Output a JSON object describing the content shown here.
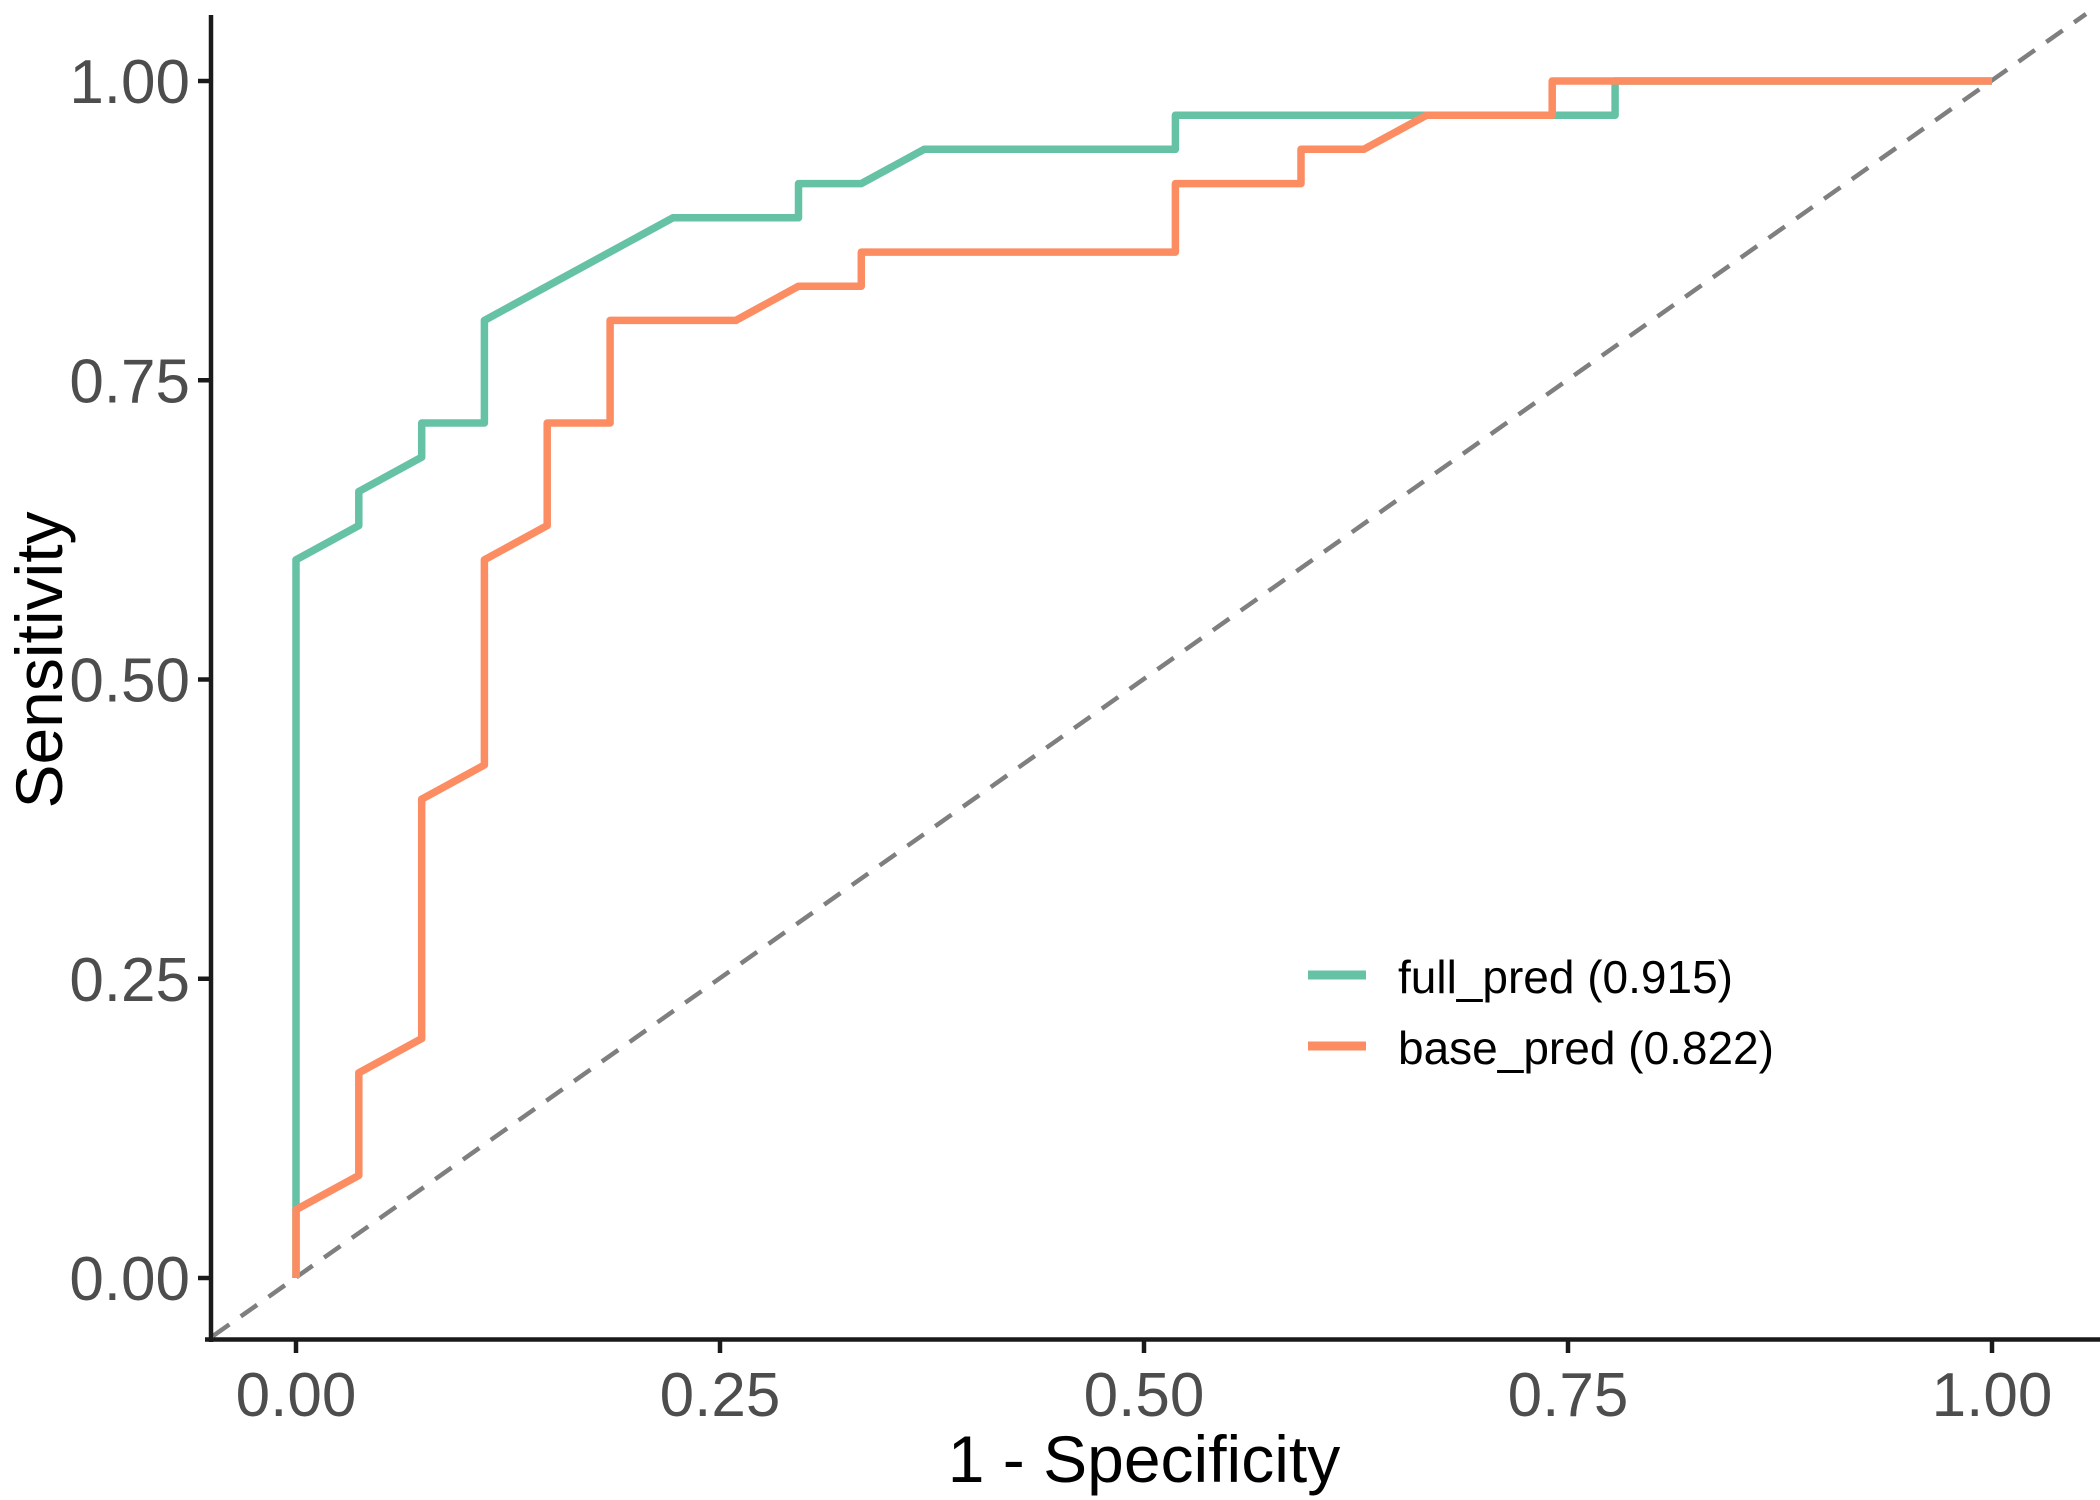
{
  "figure": {
    "kind": "ROC curve comparison plot",
    "background_color": "#ffffff"
  },
  "axes": {
    "x": {
      "label": "1 - Specificity",
      "range": [
        0,
        1
      ],
      "tick_values": [
        0,
        0.25,
        0.5,
        0.75,
        1
      ],
      "tick_labels": [
        "0.00",
        "0.25",
        "0.50",
        "0.75",
        "1.00"
      ]
    },
    "y": {
      "label": "Sensitivity",
      "range": [
        0,
        1
      ],
      "tick_values": [
        0,
        0.25,
        0.5,
        0.75,
        1
      ],
      "tick_labels": [
        "0.00",
        "0.25",
        "0.50",
        "0.75",
        "1.00"
      ]
    }
  },
  "legend": {
    "items": [
      {
        "label": "full_pred (0.915)",
        "color": "#66C2A5"
      },
      {
        "label": "base_pred (0.822)",
        "color": "#FC8D62"
      }
    ]
  },
  "styles": {
    "axis_color": "#1a1a1a",
    "tick_text_color": "#4d4d4d",
    "reference_line_color": "#7f7f7f",
    "curve_width": 7.5,
    "axis_width": 4.5
  },
  "chart_data": {
    "type": "line",
    "subtype": "roc",
    "title": "",
    "xlabel": "1 - Specificity",
    "ylabel": "Sensitivity",
    "xlim": [
      0,
      1
    ],
    "ylim": [
      0,
      1
    ],
    "grid": false,
    "legend_position": "inside-right-middle",
    "reference_line": {
      "style": "dashed",
      "color": "#7f7f7f",
      "from": [
        0,
        0
      ],
      "to": [
        1,
        1
      ]
    },
    "series": [
      {
        "name": "full_pred",
        "auc": 0.915,
        "color": "#66C2A5",
        "points": [
          [
            0,
            0
          ],
          [
            0,
            0.6
          ],
          [
            0.037,
            0.6286
          ],
          [
            0.037,
            0.6571
          ],
          [
            0.0741,
            0.6857
          ],
          [
            0.0741,
            0.7143
          ],
          [
            0.1111,
            0.7143
          ],
          [
            0.1111,
            0.8
          ],
          [
            0.2222,
            0.8857
          ],
          [
            0.2963,
            0.8857
          ],
          [
            0.2963,
            0.9143
          ],
          [
            0.3333,
            0.9143
          ],
          [
            0.3704,
            0.9429
          ],
          [
            0.5185,
            0.9429
          ],
          [
            0.5185,
            0.9714
          ],
          [
            0.7778,
            0.9714
          ],
          [
            0.7778,
            1
          ],
          [
            1,
            1
          ]
        ]
      },
      {
        "name": "base_pred",
        "auc": 0.822,
        "color": "#FC8D62",
        "points": [
          [
            0,
            0
          ],
          [
            0,
            0.0571
          ],
          [
            0.037,
            0.0857
          ],
          [
            0.037,
            0.1714
          ],
          [
            0.0741,
            0.2
          ],
          [
            0.0741,
            0.4
          ],
          [
            0.1111,
            0.4286
          ],
          [
            0.1111,
            0.6
          ],
          [
            0.1481,
            0.6286
          ],
          [
            0.1481,
            0.7143
          ],
          [
            0.1852,
            0.7143
          ],
          [
            0.1852,
            0.8
          ],
          [
            0.2593,
            0.8
          ],
          [
            0.2963,
            0.8286
          ],
          [
            0.3333,
            0.8286
          ],
          [
            0.3333,
            0.8571
          ],
          [
            0.5185,
            0.8571
          ],
          [
            0.5185,
            0.9143
          ],
          [
            0.5926,
            0.9143
          ],
          [
            0.5926,
            0.9429
          ],
          [
            0.6296,
            0.9429
          ],
          [
            0.6667,
            0.9714
          ],
          [
            0.7407,
            0.9714
          ],
          [
            0.7407,
            1
          ],
          [
            1,
            1
          ]
        ]
      }
    ]
  }
}
